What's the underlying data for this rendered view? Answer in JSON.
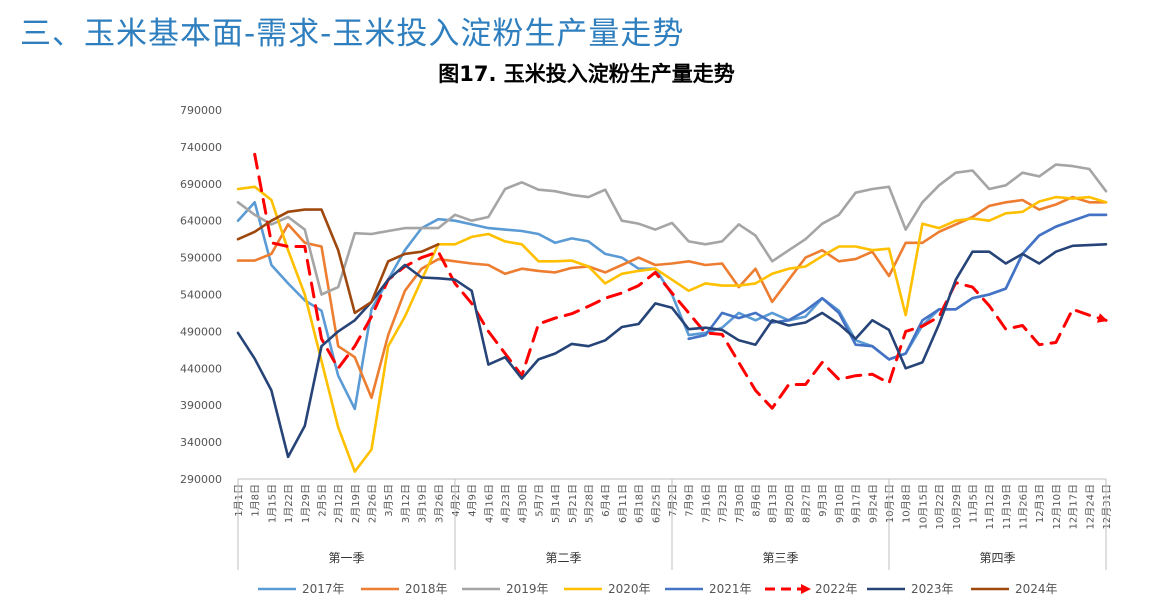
{
  "page": {
    "heading": "三、玉米基本面-需求-玉米投入淀粉生产量走势"
  },
  "chart_data": {
    "type": "line",
    "title": "图17. 玉米投入淀粉生产量走势",
    "ylim": [
      290000,
      790000
    ],
    "yticks": [
      "290000",
      "340000",
      "390000",
      "440000",
      "490000",
      "540000",
      "590000",
      "640000",
      "690000",
      "740000",
      "790000"
    ],
    "grid": false,
    "legend_position": "bottom",
    "x": [
      "1月1日",
      "1月8日",
      "1月15日",
      "1月22日",
      "1月29日",
      "2月5日",
      "2月12日",
      "2月19日",
      "2月26日",
      "3月5日",
      "3月12日",
      "3月19日",
      "3月26日",
      "4月2日",
      "4月9日",
      "4月16日",
      "4月23日",
      "4月30日",
      "5月7日",
      "5月14日",
      "5月21日",
      "5月28日",
      "6月4日",
      "6月11日",
      "6月18日",
      "6月25日",
      "7月2日",
      "7月9日",
      "7月16日",
      "7月23日",
      "7月30日",
      "8月6日",
      "8月13日",
      "8月20日",
      "8月27日",
      "9月3日",
      "9月10日",
      "9月17日",
      "9月24日",
      "10月1日",
      "10月8日",
      "10月15日",
      "10月22日",
      "10月29日",
      "11月5日",
      "11月12日",
      "11月19日",
      "11月26日",
      "12月3日",
      "12月10日",
      "12月17日",
      "12月24日",
      "12月31日"
    ],
    "quarters": [
      {
        "label": "第一季",
        "start": 0,
        "end": 13
      },
      {
        "label": "第二季",
        "start": 13,
        "end": 26
      },
      {
        "label": "第三季",
        "start": 26,
        "end": 39
      },
      {
        "label": "第四季",
        "start": 39,
        "end": 52
      }
    ],
    "series": [
      {
        "name": "2017年",
        "color": "#5b9bd5",
        "dash": false,
        "arrow": false,
        "values": [
          640000,
          665000,
          580000,
          555000,
          532000,
          518000,
          430000,
          385000,
          520000,
          560000,
          600000,
          630000,
          642000,
          640000,
          635000,
          630000,
          628000,
          626000,
          622000,
          610000,
          616000,
          612000,
          595000,
          590000,
          575000,
          575000,
          540000,
          485000,
          488000,
          495000,
          515000,
          505000,
          515000,
          505000,
          510000,
          535000,
          518000,
          478000,
          470000,
          452000,
          460000,
          498000,
          520000,
          520000,
          535000,
          540000,
          548000,
          595000,
          620000,
          632000,
          640000,
          648000,
          648000
        ]
      },
      {
        "name": "2018年",
        "color": "#ed7d31",
        "dash": false,
        "arrow": false,
        "values": [
          586000,
          586000,
          595000,
          635000,
          610000,
          605000,
          470000,
          455000,
          400000,
          485000,
          545000,
          575000,
          588000,
          585000,
          582000,
          580000,
          568000,
          575000,
          572000,
          570000,
          576000,
          578000,
          570000,
          580000,
          590000,
          580000,
          582000,
          585000,
          580000,
          582000,
          550000,
          575000,
          530000,
          560000,
          590000,
          600000,
          585000,
          588000,
          598000,
          565000,
          610000,
          610000,
          625000,
          635000,
          645000,
          660000,
          665000,
          668000,
          655000,
          662000,
          672000,
          665000,
          665000
        ]
      },
      {
        "name": "2019年",
        "color": "#a5a5a5",
        "dash": false,
        "arrow": false,
        "values": [
          665000,
          648000,
          635000,
          645000,
          628000,
          540000,
          550000,
          623000,
          622000,
          626000,
          630000,
          630000,
          630000,
          648000,
          640000,
          645000,
          683000,
          692000,
          682000,
          680000,
          675000,
          672000,
          682000,
          640000,
          636000,
          628000,
          637000,
          612000,
          608000,
          612000,
          635000,
          620000,
          585000,
          600000,
          615000,
          636000,
          648000,
          678000,
          683000,
          686000,
          628000,
          665000,
          688000,
          705000,
          708000,
          683000,
          688000,
          705000,
          700000,
          716000,
          714000,
          710000,
          680000
        ]
      },
      {
        "name": "2020年",
        "color": "#ffc000",
        "dash": false,
        "arrow": false,
        "values": [
          683000,
          686000,
          668000,
          600000,
          540000,
          450000,
          360000,
          300000,
          330000,
          470000,
          510000,
          560000,
          608000,
          608000,
          618000,
          622000,
          612000,
          608000,
          585000,
          585000,
          586000,
          578000,
          555000,
          568000,
          572000,
          575000,
          560000,
          545000,
          555000,
          552000,
          552000,
          555000,
          568000,
          575000,
          578000,
          592000,
          605000,
          605000,
          600000,
          602000,
          512000,
          636000,
          630000,
          640000,
          643000,
          640000,
          650000,
          652000,
          666000,
          672000,
          670000,
          672000,
          665000
        ]
      },
      {
        "name": "2021年",
        "color": "#4472c4",
        "dash": false,
        "arrow": false,
        "values": [
          null,
          null,
          null,
          null,
          null,
          null,
          null,
          null,
          null,
          null,
          null,
          null,
          null,
          null,
          null,
          null,
          null,
          null,
          null,
          null,
          null,
          null,
          null,
          null,
          null,
          null,
          null,
          480000,
          485000,
          515000,
          508000,
          515000,
          502000,
          505000,
          518000,
          535000,
          515000,
          472000,
          470000,
          452000,
          460000,
          505000,
          520000,
          520000,
          535000,
          540000,
          548000,
          595000,
          620000,
          632000,
          640000,
          648000,
          648000
        ]
      },
      {
        "name": "2022年",
        "color": "#ff0000",
        "dash": true,
        "arrow": true,
        "values": [
          null,
          730000,
          610000,
          605000,
          605000,
          480000,
          440000,
          470000,
          510000,
          560000,
          578000,
          590000,
          598000,
          555000,
          528000,
          490000,
          460000,
          430000,
          500000,
          508000,
          514000,
          524000,
          535000,
          542000,
          552000,
          570000,
          542000,
          515000,
          488000,
          486000,
          448000,
          410000,
          386000,
          418000,
          418000,
          448000,
          425000,
          430000,
          432000,
          420000,
          490000,
          497000,
          510000,
          556000,
          550000,
          525000,
          493000,
          498000,
          472000,
          475000,
          520000,
          512000,
          505000
        ]
      },
      {
        "name": "2023年",
        "color": "#264478",
        "dash": false,
        "arrow": false,
        "values": [
          488000,
          453000,
          410000,
          320000,
          362000,
          470000,
          490000,
          505000,
          530000,
          560000,
          580000,
          563000,
          562000,
          560000,
          545000,
          445000,
          455000,
          426000,
          452000,
          460000,
          473000,
          470000,
          478000,
          496000,
          500000,
          528000,
          522000,
          493000,
          495000,
          492000,
          478000,
          472000,
          505000,
          498000,
          502000,
          515000,
          500000,
          480000,
          505000,
          492000,
          440000,
          448000,
          500000,
          560000,
          598000,
          598000,
          582000,
          595000,
          582000,
          598000,
          606000,
          607000,
          608000
        ]
      },
      {
        "name": "2024年",
        "color": "#9e480e",
        "dash": false,
        "arrow": false,
        "values": [
          615000,
          625000,
          640000,
          652000,
          655000,
          655000,
          600000,
          515000,
          530000,
          585000,
          595000,
          598000,
          608000,
          null,
          null,
          null,
          null,
          null,
          null,
          null,
          null,
          null,
          null,
          null,
          null,
          null,
          null,
          null,
          null,
          null,
          null,
          null,
          null,
          null,
          null,
          null,
          null,
          null,
          null,
          null,
          null,
          null,
          null,
          null,
          null,
          null,
          null,
          null,
          null,
          null,
          null,
          null,
          null
        ]
      }
    ]
  }
}
